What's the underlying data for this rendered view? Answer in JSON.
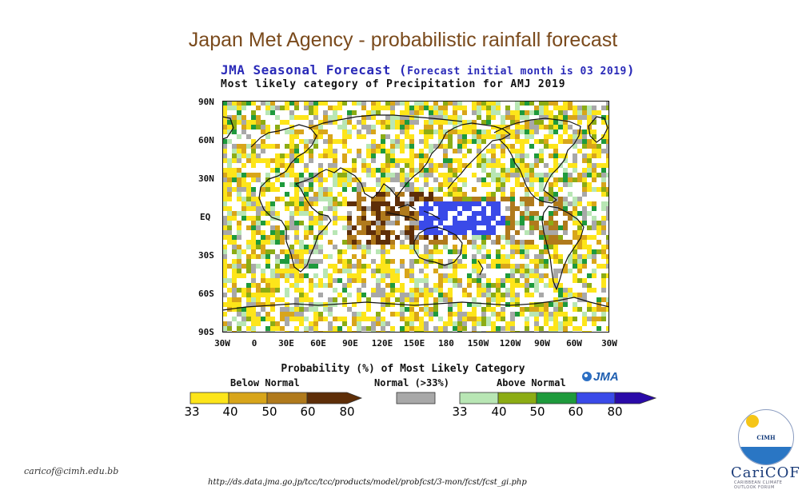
{
  "slide_title": "Japan Met Agency - probabilistic rainfall forecast",
  "map": {
    "title_main": "JMA Seasonal Forecast (",
    "title_sub": "Forecast initial month is 03 2019",
    "title_close": ")",
    "subtitle": "Most likely category of Precipitation for AMJ 2019",
    "lat_labels": [
      "90N",
      "60N",
      "30N",
      "EQ",
      "30S",
      "60S",
      "90S"
    ],
    "lon_labels": [
      "30W",
      "0",
      "30E",
      "60E",
      "90E",
      "120E",
      "150E",
      "180",
      "150W",
      "120W",
      "90W",
      "60W",
      "30W"
    ]
  },
  "legend": {
    "title": "Probability (%) of Most Likely Category",
    "below_label": "Below Normal",
    "normal_label": "Normal (>33%)",
    "above_label": "Above Normal",
    "logo_text": "JMA",
    "below_ticks": [
      "33",
      "40",
      "50",
      "60",
      "80"
    ],
    "above_ticks": [
      "33",
      "40",
      "50",
      "60",
      "80"
    ],
    "below_colors": [
      "#fde51a",
      "#d8a51a",
      "#b07a1c",
      "#5e2e08"
    ],
    "normal_color": "#a8a8a8",
    "above_colors": [
      "#b8e6b4",
      "#8cac14",
      "#1e9a3c",
      "#3a4ae8",
      "#2a0aa8"
    ]
  },
  "footer": {
    "email": "caricof@cimh.edu.bb",
    "url": "http://ds.data.jma.go.jp/tcc/tcc/products/model/probfcst/3-mon/fcst/fcst_gi.php",
    "cimh_label": "CIMH",
    "caricof_label": "CariCOF",
    "caricof_tagline": "CARIBBEAN CLIMATE OUTLOOK FORUM"
  }
}
